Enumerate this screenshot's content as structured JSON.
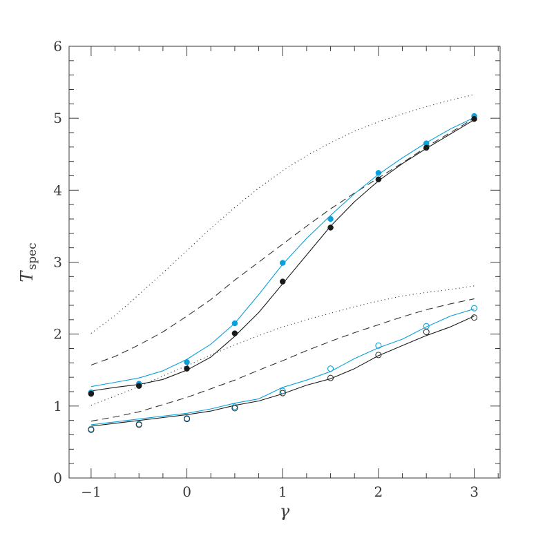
{
  "chart_data": {
    "type": "line",
    "title": "",
    "xlabel": "γ",
    "ylabel": {
      "main": "T",
      "subscript": "spec"
    },
    "xlim": [
      -1.23,
      3.27
    ],
    "ylim": [
      0,
      6
    ],
    "xticks": [
      -1,
      0,
      1,
      2,
      3
    ],
    "xtick_labels": [
      "−1",
      "0",
      "1",
      "2",
      "3"
    ],
    "yticks": [
      0,
      1,
      2,
      3,
      4,
      5,
      6
    ],
    "ytick_labels": [
      "0",
      "1",
      "2",
      "3",
      "4",
      "5",
      "6"
    ],
    "x_minor_step": 0.25,
    "y_minor_step": 0.2,
    "grid": false,
    "legend": "none",
    "colors": {
      "black": "#1a1a1a",
      "blue": "#0aa0dc",
      "gray": "#333333"
    },
    "series": [
      {
        "style": "dotted",
        "color": "#333333",
        "x": [
          -1,
          -0.75,
          -0.5,
          -0.25,
          0,
          0.25,
          0.5,
          0.75,
          1,
          1.25,
          1.5,
          1.75,
          2,
          2.25,
          2.5,
          2.75,
          3
        ],
        "y": [
          2.01,
          2.26,
          2.55,
          2.85,
          3.16,
          3.47,
          3.76,
          4.03,
          4.27,
          4.48,
          4.66,
          4.82,
          4.95,
          5.06,
          5.16,
          5.25,
          5.33
        ]
      },
      {
        "style": "dashed",
        "color": "#333333",
        "x": [
          -1,
          -0.75,
          -0.5,
          -0.25,
          0,
          0.25,
          0.5,
          0.75,
          1,
          1.25,
          1.5,
          1.75,
          2,
          2.25,
          2.5,
          2.75,
          3
        ],
        "y": [
          1.57,
          1.69,
          1.85,
          2.03,
          2.25,
          2.48,
          2.75,
          3.0,
          3.25,
          3.5,
          3.74,
          3.96,
          4.17,
          4.38,
          4.6,
          4.8,
          5.0
        ]
      },
      {
        "style": "solid",
        "color": "#0aa0dc",
        "x": [
          -1,
          -0.75,
          -0.5,
          -0.25,
          0,
          0.25,
          0.5,
          0.75,
          1,
          1.25,
          1.5,
          1.75,
          2,
          2.25,
          2.5,
          2.75,
          3
        ],
        "y": [
          1.27,
          1.33,
          1.39,
          1.49,
          1.65,
          1.86,
          2.15,
          2.55,
          2.97,
          3.33,
          3.65,
          3.95,
          4.22,
          4.45,
          4.66,
          4.85,
          5.01
        ]
      },
      {
        "style": "solid",
        "color": "#1a1a1a",
        "x": [
          -1,
          -0.75,
          -0.5,
          -0.25,
          0,
          0.25,
          0.5,
          0.75,
          1,
          1.25,
          1.5,
          1.75,
          2,
          2.25,
          2.5,
          2.75,
          3
        ],
        "y": [
          1.21,
          1.26,
          1.3,
          1.37,
          1.5,
          1.68,
          1.97,
          2.3,
          2.7,
          3.1,
          3.5,
          3.84,
          4.13,
          4.37,
          4.58,
          4.78,
          4.98
        ]
      },
      {
        "style": "markers-filled",
        "color": "#0aa0dc",
        "x": [
          -1,
          -0.5,
          0,
          0.5,
          1,
          1.5,
          2,
          2.5,
          3
        ],
        "y": [
          1.19,
          1.31,
          1.61,
          2.15,
          2.99,
          3.6,
          4.24,
          4.65,
          5.03
        ]
      },
      {
        "style": "markers-filled",
        "color": "#1a1a1a",
        "x": [
          -1,
          -0.5,
          0,
          0.5,
          1,
          1.5,
          2,
          2.5,
          3
        ],
        "y": [
          1.17,
          1.28,
          1.52,
          2.01,
          2.73,
          3.48,
          4.15,
          4.59,
          4.99
        ]
      },
      {
        "style": "dotted",
        "color": "#333333",
        "x": [
          -1,
          -0.75,
          -0.5,
          -0.25,
          0,
          0.25,
          0.5,
          0.75,
          1,
          1.25,
          1.5,
          1.75,
          2,
          2.25,
          2.5,
          2.75,
          3
        ],
        "y": [
          1.01,
          1.14,
          1.27,
          1.42,
          1.56,
          1.71,
          1.85,
          1.98,
          2.1,
          2.2,
          2.29,
          2.38,
          2.46,
          2.53,
          2.58,
          2.62,
          2.67
        ]
      },
      {
        "style": "dashed",
        "color": "#333333",
        "x": [
          -1,
          -0.75,
          -0.5,
          -0.25,
          0,
          0.25,
          0.5,
          0.75,
          1,
          1.25,
          1.5,
          1.75,
          2,
          2.25,
          2.5,
          2.75,
          3
        ],
        "y": [
          0.79,
          0.85,
          0.92,
          1.02,
          1.12,
          1.24,
          1.36,
          1.5,
          1.63,
          1.77,
          1.9,
          2.02,
          2.13,
          2.24,
          2.34,
          2.42,
          2.49
        ]
      },
      {
        "style": "solid",
        "color": "#0aa0dc",
        "x": [
          -1,
          -0.75,
          -0.5,
          -0.25,
          0,
          0.25,
          0.5,
          0.75,
          1,
          1.25,
          1.5,
          1.75,
          2,
          2.25,
          2.5,
          2.75,
          3
        ],
        "y": [
          0.74,
          0.78,
          0.82,
          0.86,
          0.9,
          0.96,
          1.04,
          1.1,
          1.26,
          1.36,
          1.48,
          1.66,
          1.81,
          1.93,
          2.1,
          2.25,
          2.35
        ]
      },
      {
        "style": "solid",
        "color": "#1a1a1a",
        "x": [
          -1,
          -0.75,
          -0.5,
          -0.25,
          0,
          0.25,
          0.5,
          0.75,
          1,
          1.25,
          1.5,
          1.75,
          2,
          2.25,
          2.5,
          2.75,
          3
        ],
        "y": [
          0.72,
          0.76,
          0.8,
          0.84,
          0.88,
          0.93,
          1.01,
          1.07,
          1.17,
          1.29,
          1.38,
          1.52,
          1.7,
          1.84,
          1.98,
          2.1,
          2.25
        ]
      },
      {
        "style": "markers-open",
        "color": "#0aa0dc",
        "x": [
          -1,
          -0.5,
          0,
          0.5,
          1,
          1.5,
          2,
          2.5,
          3
        ],
        "y": [
          0.68,
          0.75,
          0.83,
          0.99,
          1.21,
          1.52,
          1.84,
          2.11,
          2.36
        ]
      },
      {
        "style": "markers-open",
        "color": "#333333",
        "x": [
          -1,
          -0.5,
          0,
          0.5,
          1,
          1.5,
          2,
          2.5,
          3
        ],
        "y": [
          0.67,
          0.74,
          0.82,
          0.97,
          1.18,
          1.39,
          1.71,
          2.03,
          2.23
        ]
      }
    ]
  }
}
